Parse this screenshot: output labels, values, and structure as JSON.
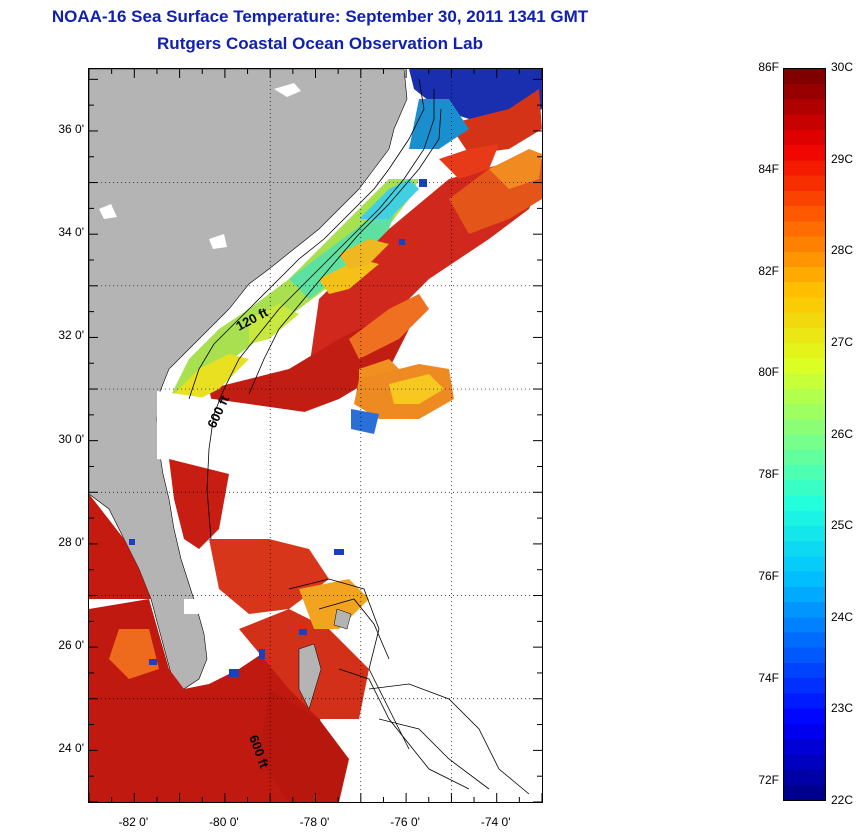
{
  "title_line1": "NOAA-16 Sea Surface Temperature:  September 30, 2011 1341 GMT",
  "title_line2": "Rutgers Coastal Ocean Observation Lab",
  "map": {
    "lat_ticks": [
      {
        "label": "36 0'",
        "value": 36
      },
      {
        "label": "34 0'",
        "value": 34
      },
      {
        "label": "32 0'",
        "value": 32
      },
      {
        "label": "30 0'",
        "value": 30
      },
      {
        "label": "28 0'",
        "value": 28
      },
      {
        "label": "26 0'",
        "value": 26
      },
      {
        "label": "24 0'",
        "value": 24
      }
    ],
    "lon_ticks": [
      {
        "label": "-82 0'",
        "value": -82
      },
      {
        "label": "-80 0'",
        "value": -80
      },
      {
        "label": "-78 0'",
        "value": -78
      },
      {
        "label": "-76 0'",
        "value": -76
      },
      {
        "label": "-74 0'",
        "value": -74
      }
    ],
    "lat_range": [
      23,
      37.2
    ],
    "lon_range": [
      -83,
      -73
    ],
    "contour_labels": [
      "120 ft",
      "600 ft",
      "600 ft"
    ],
    "colors": {
      "land": "#b4b4b4",
      "no_data": "#ffffff"
    }
  },
  "colorbar": {
    "fahrenheit": [
      "86F",
      "84F",
      "82F",
      "80F",
      "78F",
      "76F",
      "74F",
      "72F"
    ],
    "celsius": [
      "30C",
      "29C",
      "28C",
      "27C",
      "26C",
      "25C",
      "24C",
      "23C",
      "22C"
    ],
    "range_c": [
      22,
      30
    ]
  }
}
